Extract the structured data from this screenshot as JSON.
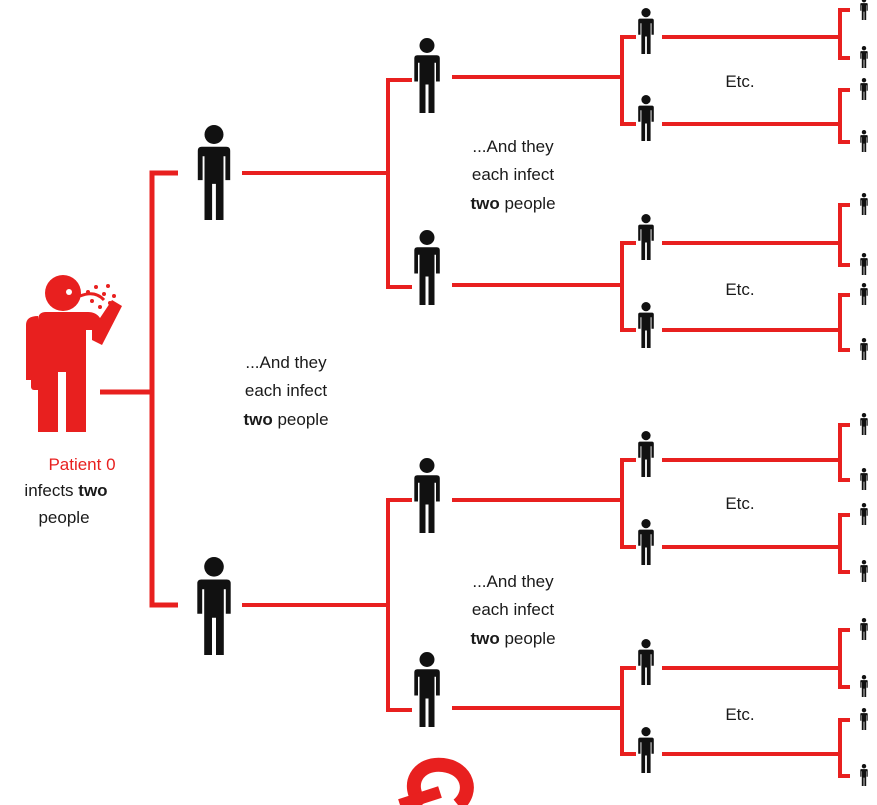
{
  "colors": {
    "accent": "#e8201f",
    "figure": "#111111",
    "text": "#1a1a1a"
  },
  "patient": {
    "label_line1": "Patient 0",
    "label_line2_pre": "infects ",
    "label_line2_bold": "two",
    "label_line3": "people",
    "icon": "sneezing-person-icon"
  },
  "infect_caption": {
    "line1": "...And they",
    "line2": "each infect",
    "bold": "two",
    "rest": " people"
  },
  "etc_label": "Etc.",
  "person_icon": "person-icon",
  "logo_icon": "speech-bubble-logo-icon"
}
